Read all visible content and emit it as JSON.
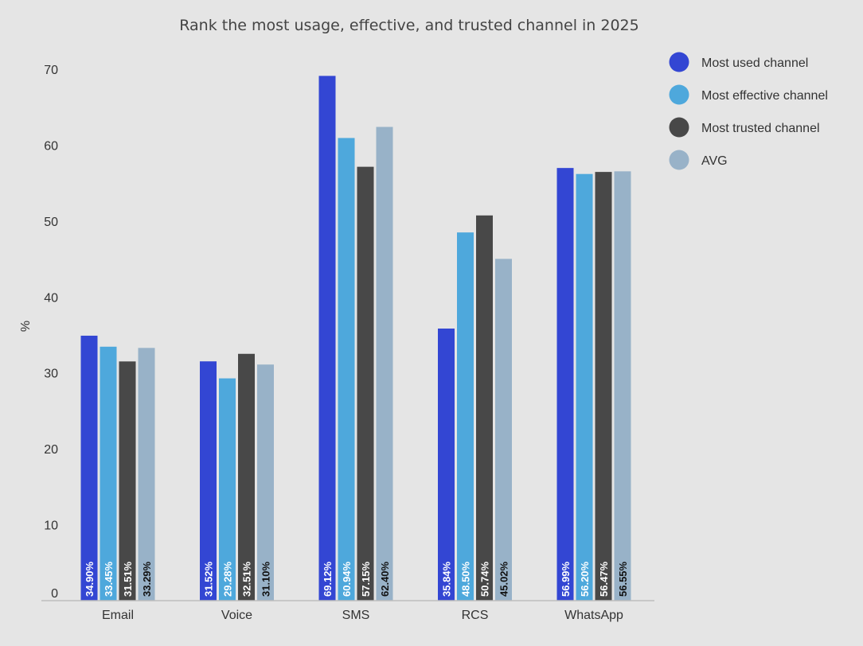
{
  "chart_data": {
    "type": "bar",
    "title": "Rank the most usage, effective, and trusted channel in 2025",
    "xlabel": "",
    "ylabel": "%",
    "ylim": [
      0,
      70
    ],
    "yticks": [
      0,
      10,
      20,
      30,
      40,
      50,
      60,
      70
    ],
    "categories": [
      "Email",
      "Voice",
      "SMS",
      "RCS",
      "WhatsApp"
    ],
    "legend_position": "right",
    "grid": false,
    "series": [
      {
        "name": "Most used channel",
        "color": "#3346d3",
        "label_color": "#ffffff",
        "values": [
          34.9,
          31.52,
          69.12,
          35.84,
          56.99
        ],
        "labels": [
          "34.90%",
          "31.52%",
          "69.12%",
          "35.84%",
          "56.99%"
        ]
      },
      {
        "name": "Most effective channel",
        "color": "#4ea8dc",
        "label_color": "#ffffff",
        "values": [
          33.45,
          29.28,
          60.94,
          48.5,
          56.2
        ],
        "labels": [
          "33.45%",
          "29.28%",
          "60.94%",
          "48.50%",
          "56.20%"
        ]
      },
      {
        "name": "Most trusted channel",
        "color": "#484848",
        "label_color": "#ffffff",
        "values": [
          31.51,
          32.51,
          57.15,
          50.74,
          56.47
        ],
        "labels": [
          "31.51%",
          "32.51%",
          "57.15%",
          "50.74%",
          "56.47%"
        ]
      },
      {
        "name": "AVG",
        "color": "#98b2c8",
        "label_color": "#111111",
        "values": [
          33.29,
          31.1,
          62.4,
          45.02,
          56.55
        ],
        "labels": [
          "33.29%",
          "31.10%",
          "62.40%",
          "45.02%",
          "56.55%"
        ]
      }
    ]
  }
}
